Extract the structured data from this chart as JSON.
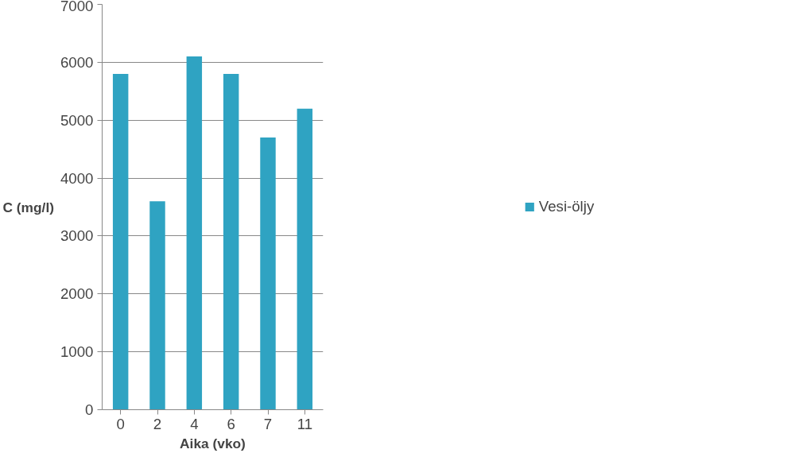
{
  "chart_data": {
    "type": "bar",
    "xlabel": "Aika (vko)",
    "ylabel": "C (mg/l)",
    "categories": [
      "0",
      "2",
      "4",
      "6",
      "7",
      "11"
    ],
    "series": [
      {
        "name": "Vesi-öljy",
        "color": "#2fa3c2",
        "values": [
          5800,
          3600,
          6100,
          5800,
          4700,
          5200
        ]
      }
    ],
    "ylim": [
      0,
      7000
    ],
    "yticks": [
      0,
      1000,
      2000,
      3000,
      4000,
      5000,
      6000,
      7000
    ],
    "grid": "y",
    "legend": "right"
  }
}
